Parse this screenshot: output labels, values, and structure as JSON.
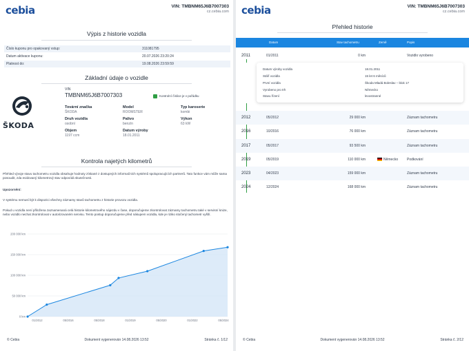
{
  "brand": "cebia",
  "vin_header": "VIN: TMBNM65J6B7007303",
  "site": "cz.cebia.com",
  "page1": {
    "title": "Výpis z historie vozidla",
    "info_rows": [
      {
        "label": "Číslo kuponu pro opakovaný vstup:",
        "value": "311081795"
      },
      {
        "label": "Datum aktivace kuponu:",
        "value": "20.07.2026 23:20:24"
      },
      {
        "label": "Platnost do:",
        "value": "19.08.2026 23:59:59"
      }
    ],
    "basic_title": "Základní údaje o vozidle",
    "brand_logo_text": "ŠKODA",
    "vin_label": "VIN",
    "vin_value": "TMBNM65J6B7007303",
    "vin_check_label": "Kontrolní číslice je v pořádku",
    "fields": [
      {
        "k": "Tovární značka",
        "v": "ŠKODA"
      },
      {
        "k": "Model",
        "v": "ROOMSTER"
      },
      {
        "k": "Typ karoserie",
        "v": "kombi"
      },
      {
        "k": "Druh vozidla",
        "v": "osobní"
      },
      {
        "k": "Palivo",
        "v": "benzín"
      },
      {
        "k": "Výkon",
        "v": "63 kW"
      },
      {
        "k": "Objem",
        "v": "1197 ccm"
      },
      {
        "k": "Datum výroby",
        "v": "18.01.2011"
      }
    ],
    "mileage_title": "Kontrola najetých kilometrů",
    "para1": "Přehled vývoje stavu tachometru vozidla obsahuje hodnoty získané z dostupných informačních systémů spolupracujících partnerů. Tato funkce vám může sama posoudit, zda evidovaný kilometrový stav odpovídá skutečnosti.",
    "para2_heading": "Upozornění:",
    "para3": "V systému nemusí být k dispozici všechny záznamy stavů tachometru z historie provozu vozidla.",
    "para4": "Pokud u vozidla není přiložena zaznamenaná celá historie kilometrového nájezdu v čase, doporučujeme zkontrolovat záznamy tachometru také v servisní knize, nebo vozidlo nechat zkontrolovat v autorizovaném servisu. Tento postup doporučujeme před nákupem vozidla, kde je riziko stočený tachometr vyšší.",
    "footer_left": "© Cebia",
    "footer_center": "Dokument vygenerován 14.08.2026 13:52",
    "footer_right": "Stránka č. 1/12"
  },
  "page2": {
    "title": "Přehled historie",
    "headers": {
      "date": "Datum",
      "km": "Stav tachometru",
      "country": "Země",
      "desc": "Popis"
    },
    "first_row": {
      "year": "2011",
      "date": "01/2011",
      "km": "0 km",
      "country": "",
      "desc": "Vozidlo vyrobeno"
    },
    "detail": [
      {
        "k": "Datum výroby vozidla",
        "v": "18.01.2011"
      },
      {
        "k": "Stáří vozidla",
        "v": "15 let 6 měsíců"
      },
      {
        "k": "První vozidla",
        "v": "Škoda Mladá Boleslav – blok 17"
      },
      {
        "k": "Vyrobeno pro trh",
        "v": "Německo"
      },
      {
        "k": "Stavu řízení",
        "v": "levostranné"
      }
    ],
    "rows": [
      {
        "year": "2012",
        "date": "05/2012",
        "km": "29 000 km",
        "country": "",
        "desc": "Záznam tachometru"
      },
      {
        "year": "2016",
        "date": "10/2016",
        "km": "76 000 km",
        "country": "",
        "desc": "Záznam tachometru"
      },
      {
        "year": "2017",
        "date": "05/2017",
        "km": "93 500 km",
        "country": "",
        "desc": "Záznam tachometru"
      },
      {
        "year": "2019",
        "date": "05/2019",
        "km": "110 000 km",
        "country": "Německo",
        "desc": "Podkování"
      },
      {
        "year": "2023",
        "date": "04/2023",
        "km": "159 000 km",
        "country": "",
        "desc": "Záznam tachometru"
      },
      {
        "year": "2024",
        "date": "12/2024",
        "km": "168 000 km",
        "country": "",
        "desc": "Záznam tachometru"
      }
    ],
    "footer_left": "© Cebia",
    "footer_center": "Dokument vygenerován 14.08.2026 13:52",
    "footer_right": "Stránka č. 2/12"
  },
  "colors": {
    "accent": "#1b86e0",
    "line": "#1b86e0",
    "fill": "#cfe3f7",
    "check": "#2f9e44"
  },
  "chart_data": {
    "type": "area",
    "title": "",
    "xlabel": "",
    "ylabel": "",
    "x_ticks": [
      "01/2012",
      "05/2016",
      "05/2018",
      "01/2019",
      "05/2020",
      "01/2022",
      "05/2024"
    ],
    "y_ticks": [
      "0 km",
      "50 000 km",
      "100 000 km",
      "150 000 km",
      "200 000 km"
    ],
    "ylim": [
      0,
      200000
    ],
    "grid": true,
    "series": [
      {
        "points": [
          {
            "x": "01/2011",
            "y": 0
          },
          {
            "x": "05/2012",
            "y": 29000
          },
          {
            "x": "10/2016",
            "y": 76000
          },
          {
            "x": "05/2017",
            "y": 93500
          },
          {
            "x": "05/2019",
            "y": 110000
          },
          {
            "x": "04/2023",
            "y": 159000
          },
          {
            "x": "12/2024",
            "y": 168000
          }
        ]
      }
    ]
  }
}
